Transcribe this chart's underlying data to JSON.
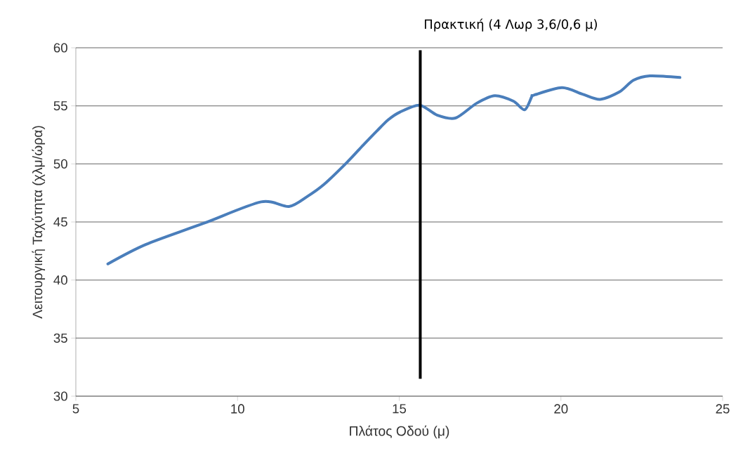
{
  "chart_data": {
    "type": "line",
    "xlabel": "Πλάτος Οδού (μ)",
    "ylabel": "Λειτουργική Ταχύτητα (χλμ/ώρα)",
    "x": [
      5.99,
      7.16,
      8.95,
      10.73,
      11.59,
      12.16,
      12.66,
      13.38,
      13.88,
      14.31,
      14.66,
      15.02,
      15.63,
      16.17,
      16.74,
      17.38,
      17.95,
      18.53,
      18.88,
      19.1,
      19.17,
      20.03,
      20.67,
      21.21,
      21.81,
      22.24,
      22.75,
      23.68
    ],
    "series": [
      {
        "color": "#4a7ebb",
        "values": [
          41.39,
          43.06,
          44.88,
          46.73,
          46.33,
          47.2,
          48.2,
          50.12,
          51.6,
          52.84,
          53.8,
          54.46,
          55.06,
          54.2,
          53.95,
          55.2,
          55.87,
          55.4,
          54.66,
          55.8,
          55.93,
          56.57,
          56.0,
          55.56,
          56.2,
          57.2,
          57.58,
          57.44
        ]
      }
    ],
    "xlim": [
      5,
      25
    ],
    "ylim": [
      30,
      60
    ],
    "xticks": [
      5,
      10,
      15,
      20,
      25
    ],
    "yticks": [
      30,
      35,
      40,
      45,
      50,
      55,
      60
    ],
    "grid": "y",
    "marker": "none",
    "line_style": "solid",
    "ref_lines": [
      {
        "axis": "x",
        "value": 15.65,
        "label": "Πρακτική (4 Λωρ 3,6/0,6 μ)",
        "color": "#000000"
      }
    ]
  }
}
